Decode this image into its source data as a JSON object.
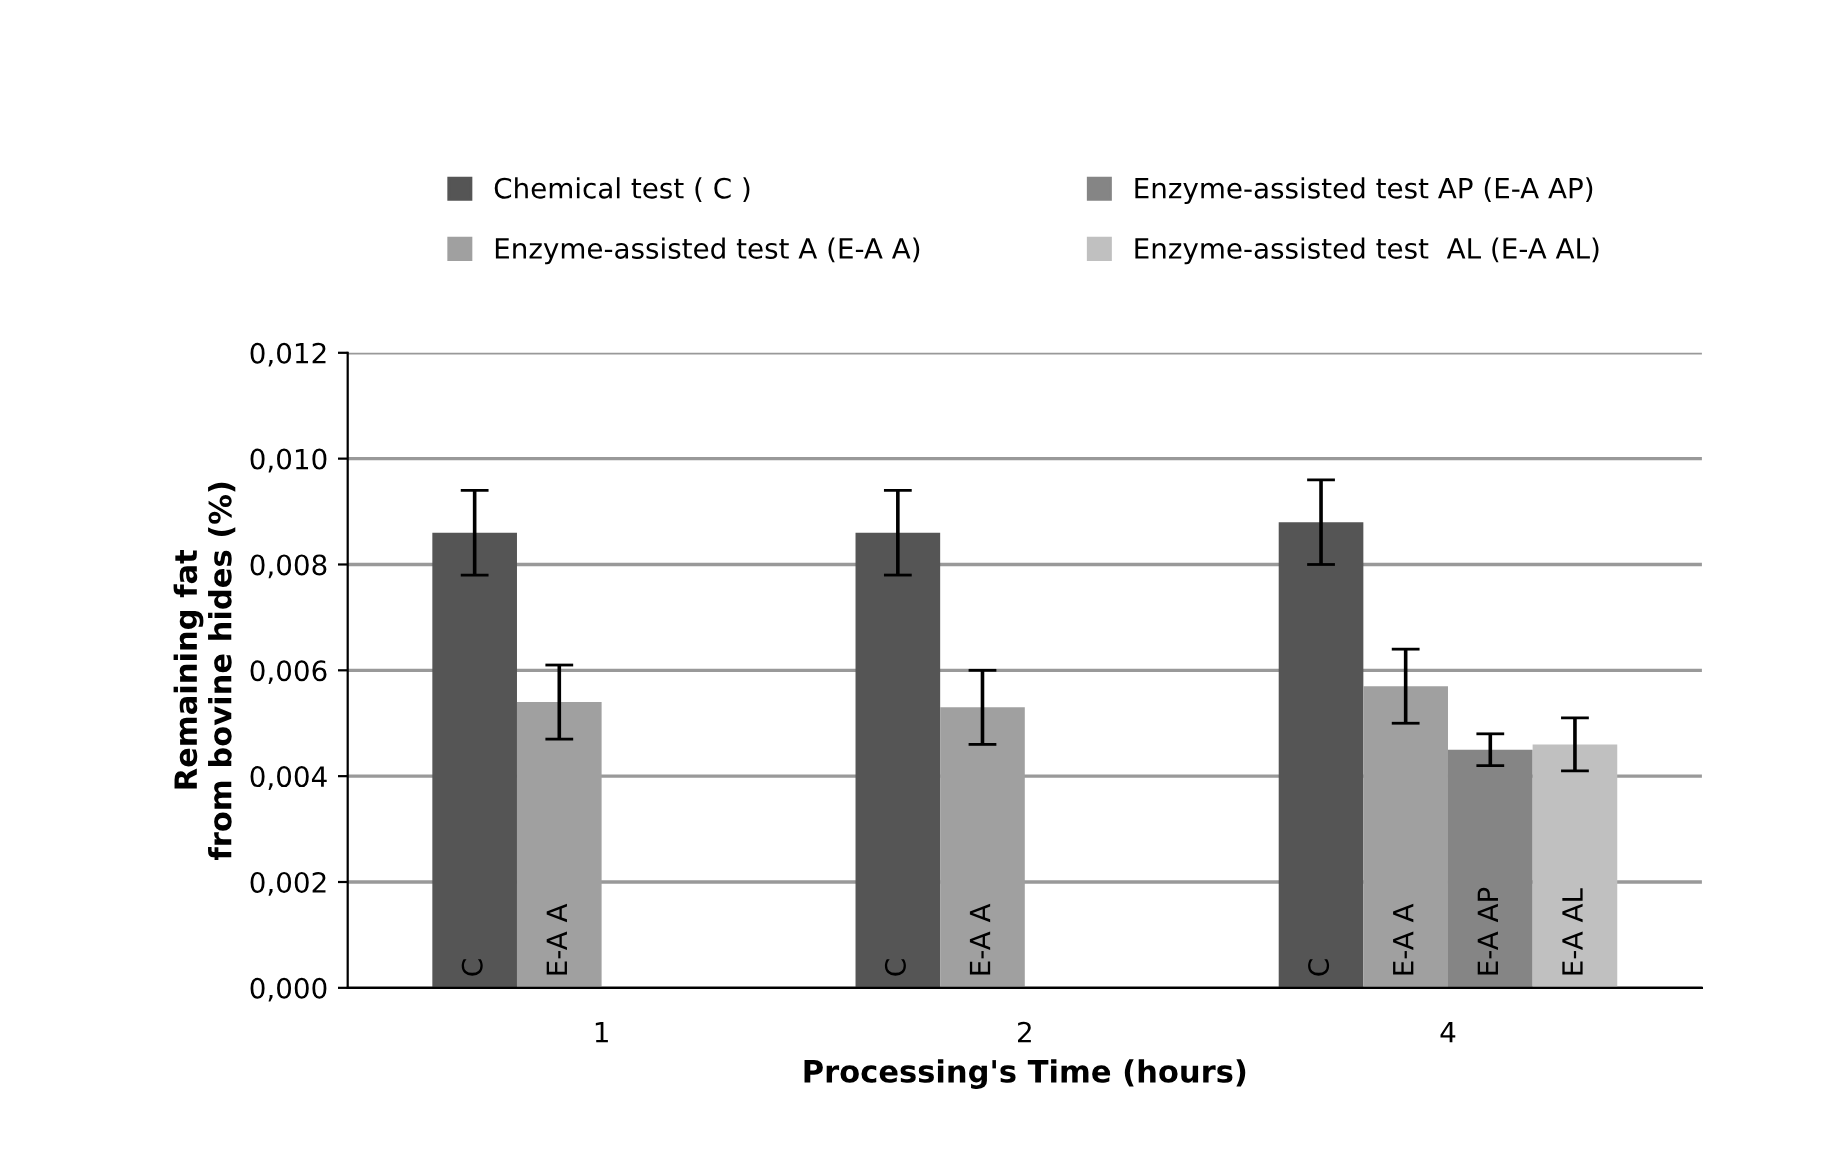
{
  "chart_data": {
    "type": "bar",
    "xlabel": "Processing's Time (hours)",
    "ylabel": "Remaining fat\nfrom bovine hides (%)",
    "categories": [
      "1",
      "2",
      "4"
    ],
    "series": [
      {
        "name": "Chemical test ( C )",
        "color": "#555555",
        "values": [
          0.0086,
          0.0086,
          0.0088
        ],
        "errors": [
          0.0008,
          0.0008,
          0.0008
        ],
        "value_labels": [
          "C",
          "C",
          "C"
        ]
      },
      {
        "name": "Enzyme-assisted test A (E-A A)",
        "color": "#a0a0a0",
        "values": [
          0.0054,
          0.0053,
          0.0057
        ],
        "errors": [
          0.0007,
          0.0007,
          0.0007
        ],
        "value_labels": [
          "E-A A",
          "E-A A",
          "E-A A"
        ]
      },
      {
        "name": "Enzyme-assisted test AP (E-A AP)",
        "color": "#858585",
        "values": [
          null,
          null,
          0.0045
        ],
        "errors": [
          null,
          null,
          0.0003
        ],
        "value_labels": [
          null,
          null,
          "E-A AP"
        ]
      },
      {
        "name": "Enzyme-assisted test  AL (E-A AL)",
        "color": "#c0c0c0",
        "values": [
          null,
          null,
          0.0046
        ],
        "errors": [
          null,
          null,
          0.0005
        ],
        "value_labels": [
          null,
          null,
          "E-A AL"
        ]
      }
    ],
    "ylim": [
      0,
      0.012
    ],
    "yticks": [
      {
        "value": 0,
        "label": "0,000"
      },
      {
        "value": 0.002,
        "label": "0,002"
      },
      {
        "value": 0.004,
        "label": "0,004"
      },
      {
        "value": 0.006,
        "label": "0,006"
      },
      {
        "value": 0.008,
        "label": "0,008"
      },
      {
        "value": 0.01,
        "label": "0,010"
      },
      {
        "value": 0.012,
        "label": "0,012"
      }
    ],
    "grid": "y",
    "legend": "top"
  }
}
